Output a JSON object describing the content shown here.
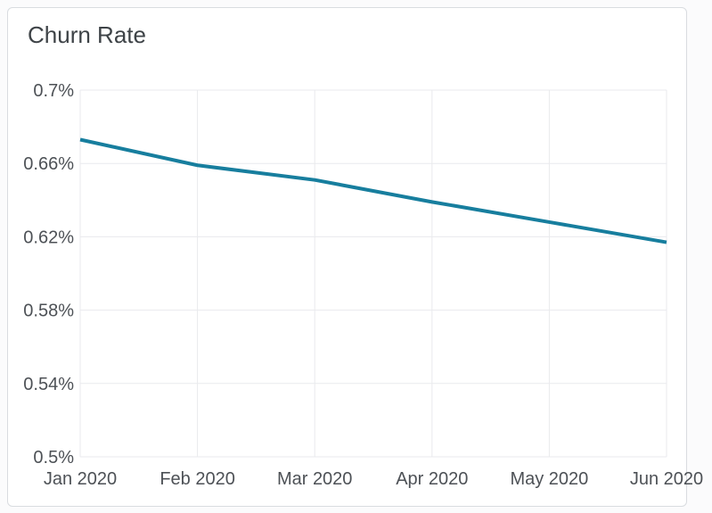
{
  "card": {
    "title": "Churn Rate"
  },
  "colors": {
    "line": "#177E9E",
    "grid": "#E9EAED",
    "axis_text": "#4D5156",
    "title_text": "#3E4347",
    "card_border": "#D9DCE0",
    "card_bg": "#FFFFFF",
    "page_bg": "#FBFBFC"
  },
  "chart_data": {
    "type": "line",
    "title": "Churn Rate",
    "x": [
      "Jan 2020",
      "Feb 2020",
      "Mar 2020",
      "Apr 2020",
      "May 2020",
      "Jun 2020"
    ],
    "series": [
      {
        "name": "Churn Rate",
        "values": [
          0.673,
          0.659,
          0.651,
          0.639,
          0.628,
          0.617
        ]
      }
    ],
    "unit": "%",
    "ylim": [
      0.5,
      0.7
    ],
    "yticks": [
      0.7,
      0.66,
      0.62,
      0.58,
      0.54,
      0.5
    ],
    "ytick_labels": [
      "0.7%",
      "0.66%",
      "0.62%",
      "0.58%",
      "0.54%",
      "0.5%"
    ],
    "grid": true,
    "legend": false,
    "markers": false
  }
}
